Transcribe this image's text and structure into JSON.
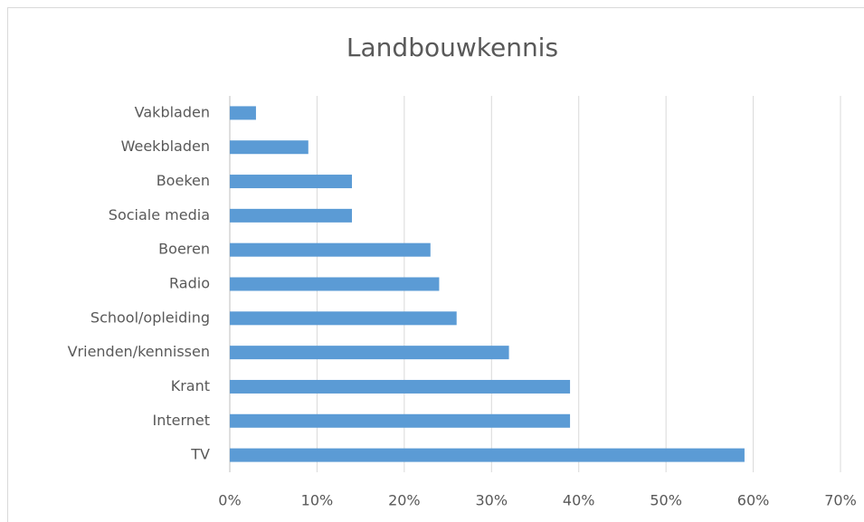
{
  "chart_data": {
    "type": "bar",
    "orientation": "horizontal",
    "title": "Landbouwkennis",
    "categories": [
      "Vakbladen",
      "Weekbladen",
      "Boeken",
      "Sociale media",
      "Boeren",
      "Radio",
      "School/opleiding",
      "Vrienden/kennissen",
      "Krant",
      "Internet",
      "TV"
    ],
    "values": [
      3,
      9,
      14,
      14,
      23,
      24,
      26,
      32,
      39,
      39,
      59
    ],
    "color": "#5b9bd5",
    "xlim": [
      0,
      70
    ],
    "xticks": [
      {
        "value": 0,
        "label": "0%"
      },
      {
        "value": 10,
        "label": "10%"
      },
      {
        "value": 20,
        "label": "20%"
      },
      {
        "value": 30,
        "label": "30%"
      },
      {
        "value": 40,
        "label": "40%"
      },
      {
        "value": 50,
        "label": "50%"
      },
      {
        "value": 60,
        "label": "60%"
      },
      {
        "value": 70,
        "label": "70%"
      }
    ],
    "grid": true
  }
}
